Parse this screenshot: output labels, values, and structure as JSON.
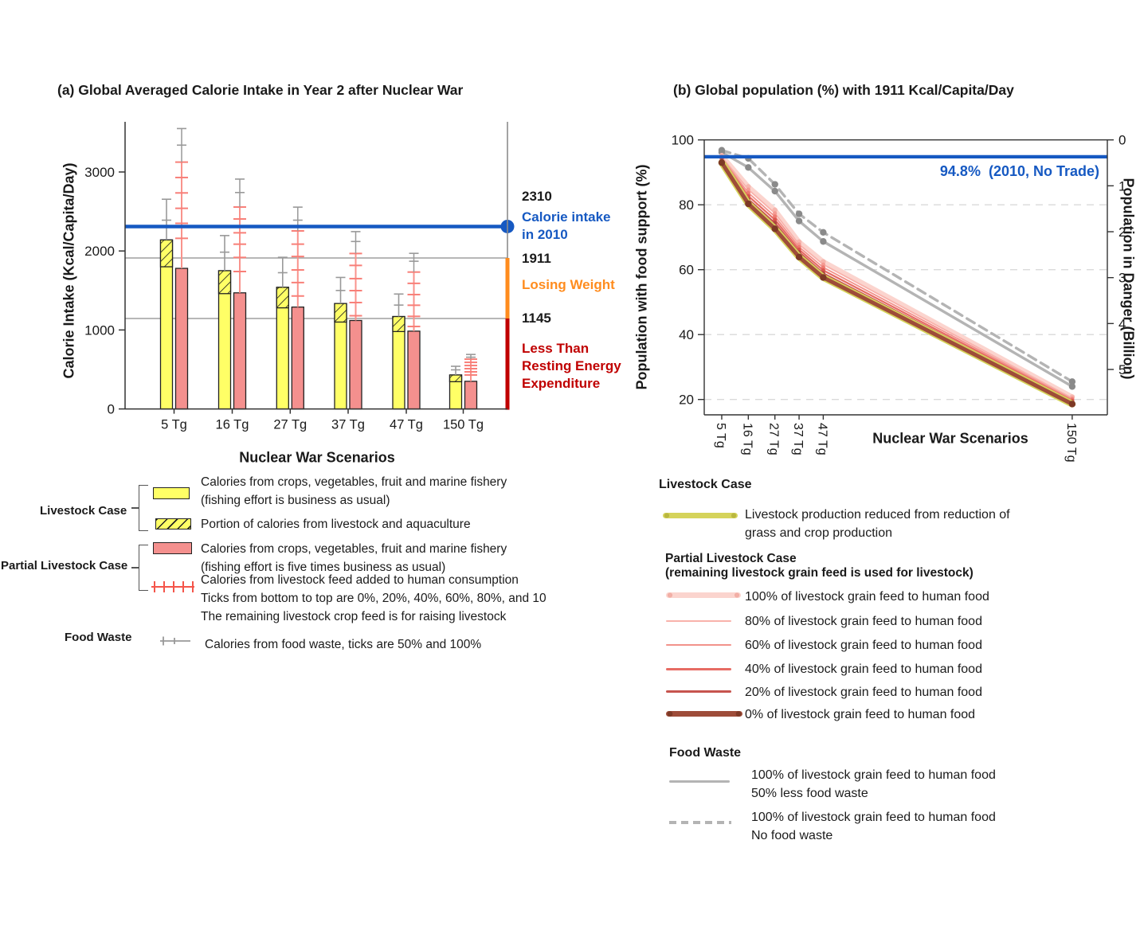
{
  "colors": {
    "blue": "#1659C2",
    "orange": "#FF8C1E",
    "dark_red": "#C00000",
    "bar_yellow": "#FFFF66",
    "bar_pink": "#F4908E",
    "feed_tick_red": "#F87F78",
    "whisker_gray": "#999999",
    "ref_gray": "#8C8C8C",
    "axis": "#333333",
    "grid_dash": "#DADADA"
  },
  "panel_a": {
    "title": "(a) Global Averaged Calorie Intake in Year 2 after Nuclear War",
    "ylabel": "Calorie Intake (Kcal/Capita/Day)",
    "xlabel": "Nuclear War Scenarios",
    "annotations": {
      "v2310": "2310",
      "calorie_2010_l1": "Calorie intake",
      "calorie_2010_l2": "in 2010",
      "v1911": "1911",
      "losing_weight": "Losing Weight",
      "v1145": "1145",
      "rest_l1": "Less Than",
      "rest_l2": "Resting Energy",
      "rest_l3": "Expenditure"
    },
    "legend": {
      "group1_label": "Livestock Case",
      "item1_line1": "Calories from crops, vegetables, fruit and marine fishery",
      "item1_line2": "(fishing effort is business as usual)",
      "item2_line1": "Portion of calories from livestock and aquaculture",
      "group2_label": "Partial Livestock Case",
      "item3_line1": "Calories from crops, vegetables, fruit and marine fishery",
      "item3_line2": "(fishing effort is five times business as usual)",
      "item4_line1": "Calories from livestock feed added to human consumption",
      "item4_line2": "Ticks from bottom to top are 0%, 20%, 40%, 60%, 80%, and 10",
      "item4_line3": "The remaining livestock crop feed is for raising livestock",
      "group3_label": "Food Waste",
      "item5_line1": "Calories from food waste, ticks are 50% and 100%"
    }
  },
  "panel_b": {
    "title": "(b) Global population (%) with 1911 Kcal/Capita/Day",
    "ylabel_left": "Population with food support (%)",
    "ylabel_right": "Population in Danger (Billion)",
    "xlabel": "Nuclear War Scenarios",
    "legend": {
      "head1": "Livestock Case",
      "item_livestock_l1": "Livestock production reduced from reduction of",
      "item_livestock_l2": "grass and crop production",
      "head2_l1": "Partial Livestock Case",
      "head2_l2": "(remaining livestock grain feed is used for livestock)",
      "feed100": "100% of livestock grain feed to human food",
      "feed80": "80% of livestock grain feed to human food",
      "feed60": "60% of livestock grain feed to human food",
      "feed40": "40% of livestock grain feed to human food",
      "feed20": "20% of livestock grain feed to human food",
      "feed0": "0% of livestock grain feed to human food",
      "head3": "Food Waste",
      "waste50_l1": "100% of livestock grain feed to human food",
      "waste50_l2": "50% less food waste",
      "waste0_l1": "100% of livestock grain feed to human food",
      "waste0_l2": "No food waste"
    }
  },
  "chart_data": [
    {
      "type": "bar",
      "title": "(a) Global Averaged Calorie Intake in Year 2 after Nuclear War",
      "xlabel": "Nuclear War Scenarios",
      "ylabel": "Calorie Intake (Kcal/Capita/Day)",
      "ylim": [
        0,
        3650
      ],
      "yticks": [
        0,
        1000,
        2000,
        3000
      ],
      "categories": [
        "5 Tg",
        "16 Tg",
        "27 Tg",
        "37 Tg",
        "47 Tg",
        "150 Tg"
      ],
      "reference_lines": [
        {
          "value": 2310,
          "label": "Calorie intake in 2010",
          "color": "#1659C2"
        },
        {
          "value": 1911,
          "label": "Losing Weight",
          "color": "#FF8C1E"
        },
        {
          "value": 1145,
          "label": "Less Than Resting Energy Expenditure",
          "color": "#C00000"
        }
      ],
      "bars": {
        "livestock_total": [
          2140,
          1750,
          1540,
          1335,
          1170,
          430
        ],
        "livestock_portion_start": [
          1800,
          1460,
          1280,
          1100,
          980,
          345
        ],
        "livestock_waste_ticks": [
          [
            2390,
            2655
          ],
          [
            1985,
            2195
          ],
          [
            1725,
            1920
          ],
          [
            1500,
            1665
          ],
          [
            1315,
            1455
          ],
          [
            495,
            540
          ]
        ],
        "partial_crop": [
          1780,
          1470,
          1290,
          1120,
          985,
          350
        ],
        "partial_feed_ticks": [
          [
            2160,
            2350,
            2540,
            2735,
            2930,
            3125
          ],
          [
            1740,
            1918,
            2086,
            2230,
            2405,
            2556
          ],
          [
            1430,
            1600,
            1760,
            1930,
            2086,
            2254
          ],
          [
            1180,
            1347,
            1498,
            1650,
            1817,
            1968
          ],
          [
            1044,
            1172,
            1313,
            1448,
            1590,
            1733
          ],
          [
            430,
            470,
            510,
            550,
            590,
            630
          ]
        ],
        "partial_waste_ticks": [
          [
            3340,
            3550
          ],
          [
            2740,
            2910
          ],
          [
            2390,
            2555
          ],
          [
            2120,
            2245
          ],
          [
            1870,
            1970
          ],
          [
            655,
            690
          ]
        ]
      }
    },
    {
      "type": "line",
      "title": "(b) Global population (%) with 1911 Kcal/Capita/Day",
      "xlabel": "Nuclear War Scenarios",
      "ylabel_left": "Population with food support (%)",
      "ylabel_right": "Population in Danger (Billion)",
      "x_tg": [
        5,
        16,
        27,
        37,
        47,
        150
      ],
      "x_labels": [
        "5 Tg",
        "16 Tg",
        "27 Tg",
        "37 Tg",
        "47 Tg",
        "150 Tg"
      ],
      "yticks_left": [
        100,
        80,
        60,
        40,
        20
      ],
      "yticks_right": [
        0,
        1,
        2,
        3,
        4,
        5
      ],
      "ylim_left": [
        15,
        100
      ],
      "grid": "dashed at 80/60/40/20",
      "legend_position": "below",
      "reference": {
        "value": 94.8,
        "label": "94.8%  (2010, No Trade)",
        "color": "#1659C2"
      },
      "series": [
        {
          "name": "100% feed to human food, no food waste",
          "style": "gray-dashed",
          "values": [
            96.8,
            94.3,
            86.3,
            77.2,
            71.5,
            25.5
          ]
        },
        {
          "name": "100% feed to human food, 50% less food waste",
          "style": "gray-solid",
          "values": [
            96.2,
            91.5,
            84.2,
            75.0,
            68.7,
            24.0
          ]
        },
        {
          "name": "100% of livestock grain feed to human food",
          "style": "pink100",
          "values": [
            95.2,
            85.6,
            78.4,
            68.6,
            62.5,
            20.8
          ]
        },
        {
          "name": "80% of livestock grain feed to human food",
          "style": "pink80",
          "values": [
            94.8,
            84.7,
            77.4,
            67.8,
            61.6,
            20.4
          ]
        },
        {
          "name": "60% of livestock grain feed to human food",
          "style": "pink60",
          "values": [
            94.4,
            83.7,
            76.4,
            67.0,
            60.7,
            20.0
          ]
        },
        {
          "name": "40% of livestock grain feed to human food",
          "style": "pink40",
          "values": [
            94.0,
            82.7,
            75.4,
            66.2,
            59.8,
            19.6
          ]
        },
        {
          "name": "20% of livestock grain feed to human food",
          "style": "pink20",
          "values": [
            93.6,
            81.7,
            74.4,
            65.4,
            58.9,
            19.2
          ]
        },
        {
          "name": "Livestock case",
          "style": "livestock",
          "values": [
            93.0,
            80.3,
            72.6,
            63.9,
            57.6,
            18.6
          ]
        },
        {
          "name": "0% of livestock grain feed to human food",
          "style": "pink0",
          "values": [
            93.0,
            80.3,
            72.6,
            63.9,
            57.6,
            18.6
          ]
        }
      ]
    }
  ]
}
